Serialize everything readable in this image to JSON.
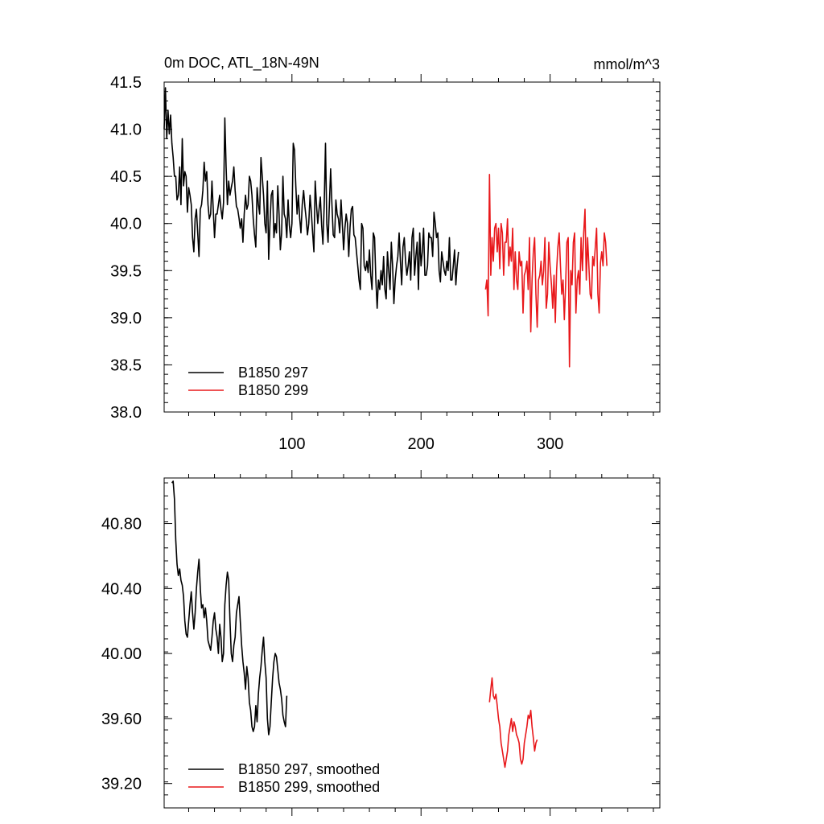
{
  "chart_data": [
    {
      "type": "line",
      "title": "0m DOC, ATL_18N-49N",
      "units": "mmol/m^3",
      "xlim": [
        1,
        385
      ],
      "ylim": [
        38.0,
        41.5
      ],
      "xticks": [
        100,
        200,
        300
      ],
      "xtick_labels": [
        "100",
        "200",
        "300"
      ],
      "yticks": [
        38.0,
        38.5,
        39.0,
        39.5,
        40.0,
        40.5,
        41.0,
        41.5
      ],
      "ytick_labels": [
        "38.0",
        "38.5",
        "39.0",
        "39.5",
        "40.0",
        "40.5",
        "41.0",
        "41.5"
      ],
      "legend_position": "bottom-left",
      "series": [
        {
          "name": "B1850 297",
          "color": "#000000",
          "x_start": 1,
          "values": [
            41.0,
            41.44,
            40.9,
            41.2,
            40.95,
            41.15,
            40.85,
            40.7,
            40.5,
            40.5,
            40.25,
            40.3,
            40.6,
            40.2,
            40.9,
            40.4,
            40.55,
            40.5,
            40.12,
            40.38,
            40.3,
            40.2,
            39.85,
            39.7,
            40.05,
            40.15,
            39.9,
            39.65,
            40.15,
            40.2,
            40.35,
            40.65,
            40.45,
            40.55,
            40.2,
            40.05,
            40.1,
            40.45,
            40.15,
            39.85,
            40.1,
            40.1,
            40.2,
            40.3,
            40.15,
            40.05,
            40.22,
            41.12,
            40.6,
            40.2,
            40.45,
            40.3,
            40.38,
            40.45,
            40.6,
            40.35,
            40.18,
            40.15,
            40.06,
            39.95,
            40.05,
            39.8,
            40.1,
            40.3,
            40.15,
            40.2,
            40.5,
            40.45,
            40.3,
            40.05,
            39.88,
            39.75,
            40.38,
            40.2,
            40.1,
            40.7,
            40.5,
            40.3,
            40.0,
            39.9,
            40.45,
            39.62,
            40.0,
            40.3,
            40.35,
            39.85,
            40.0,
            39.9,
            40.4,
            40.1,
            39.72,
            39.9,
            40.5,
            40.1,
            40.05,
            39.85,
            40.25,
            39.98,
            39.85,
            40.0,
            40.85,
            40.78,
            40.4,
            40.1,
            40.3,
            40.06,
            39.9,
            40.2,
            40.35,
            40.18,
            40.05,
            39.88,
            40.0,
            40.3,
            40.12,
            39.9,
            39.7,
            40.45,
            40.2,
            40.0,
            40.15,
            40.28,
            39.98,
            39.78,
            40.2,
            40.85,
            40.0,
            39.8,
            40.2,
            40.58,
            40.2,
            39.88,
            39.85,
            40.25,
            40.1,
            40.05,
            39.9,
            40.25,
            40.0,
            39.72,
            39.95,
            40.1,
            40.0,
            39.65,
            39.96,
            40.15,
            40.18,
            39.88,
            39.85,
            39.7,
            39.55,
            39.4,
            39.3,
            40.0,
            39.95,
            39.55,
            39.5,
            39.6,
            39.48,
            39.72,
            39.45,
            39.3,
            39.9,
            39.85,
            39.4,
            39.1,
            39.4,
            39.3,
            39.5,
            39.35,
            39.65,
            39.3,
            39.2,
            39.7,
            39.5,
            39.3,
            39.8,
            39.55,
            39.15,
            39.4,
            39.55,
            39.65,
            39.9,
            39.6,
            39.35,
            39.75,
            39.85,
            39.6,
            39.45,
            39.55,
            39.7,
            39.4,
            39.85,
            39.95,
            39.45,
            39.65,
            39.8,
            39.3,
            39.9,
            39.55,
            39.7,
            39.95,
            39.45,
            39.45,
            39.55,
            39.9,
            39.85,
            39.85,
            39.65,
            40.12,
            40.0,
            39.85,
            39.9,
            39.5,
            39.38,
            39.7,
            39.6,
            39.5,
            39.45,
            39.6,
            39.5,
            39.85,
            39.4,
            39.4,
            39.55,
            39.72,
            39.35,
            39.55,
            39.7
          ]
        },
        {
          "name": "B1850 299",
          "color": "#e8181b",
          "x_start": 250,
          "values": [
            39.3,
            39.4,
            39.02,
            40.52,
            39.45,
            39.85,
            39.6,
            39.95,
            40.0,
            39.7,
            39.95,
            39.52,
            40.0,
            39.9,
            39.45,
            39.8,
            39.8,
            40.05,
            39.55,
            39.75,
            39.6,
            39.95,
            39.3,
            39.7,
            39.4,
            39.3,
            39.7,
            39.55,
            39.6,
            39.05,
            39.45,
            39.5,
            39.6,
            39.3,
            39.85,
            38.85,
            39.4,
            39.7,
            39.85,
            39.25,
            38.9,
            39.4,
            39.45,
            39.6,
            39.35,
            39.5,
            39.85,
            39.1,
            39.25,
            39.8,
            39.55,
            39.35,
            39.1,
            39.45,
            38.95,
            39.5,
            39.75,
            39.9,
            39.55,
            39.25,
            39.4,
            38.98,
            39.35,
            39.8,
            39.85,
            38.48,
            39.5,
            39.35,
            39.8,
            39.9,
            39.05,
            39.4,
            39.5,
            39.25,
            39.85,
            39.5,
            39.9,
            40.15,
            39.4,
            39.85,
            39.55,
            39.25,
            39.2,
            39.65,
            39.55,
            39.75,
            39.95,
            39.25,
            39.05,
            39.58,
            39.7,
            39.55,
            39.9,
            39.8,
            39.55
          ]
        }
      ]
    },
    {
      "type": "line",
      "title": "",
      "xlim": [
        1,
        385
      ],
      "ylim": [
        39.05,
        41.08
      ],
      "xticks": [
        100,
        200,
        300
      ],
      "yticks": [
        39.2,
        39.6,
        40.0,
        40.4,
        40.8
      ],
      "ytick_labels": [
        "39.20",
        "39.60",
        "40.00",
        "40.40",
        "40.80"
      ],
      "legend_position": "bottom-left",
      "series": [
        {
          "name": "B1850 297, smoothed",
          "color": "#000000",
          "x_start": 7,
          "values": [
            41.05,
            41.06,
            40.95,
            40.7,
            40.55,
            40.48,
            40.52,
            40.45,
            40.42,
            40.35,
            40.2,
            40.12,
            40.1,
            40.2,
            40.3,
            40.38,
            40.25,
            40.15,
            40.25,
            40.4,
            40.5,
            40.58,
            40.4,
            40.28,
            40.3,
            40.22,
            40.28,
            40.2,
            40.08,
            40.05,
            40.02,
            40.1,
            40.2,
            40.25,
            40.15,
            40.1,
            40.0,
            40.18,
            40.1,
            39.95,
            40.0,
            40.3,
            40.42,
            40.5,
            40.45,
            40.2,
            40.0,
            39.95,
            40.05,
            40.1,
            40.25,
            40.3,
            40.35,
            40.2,
            40.05,
            39.95,
            39.88,
            39.78,
            39.92,
            39.85,
            39.7,
            39.65,
            39.55,
            39.52,
            39.55,
            39.68,
            39.58,
            39.75,
            39.85,
            39.92,
            40.02,
            40.1,
            39.95,
            39.85,
            39.6,
            39.5,
            39.55,
            39.7,
            39.85,
            39.95,
            40.0,
            39.98,
            39.9,
            39.82,
            39.78,
            39.72,
            39.62,
            39.58,
            39.55,
            39.74
          ]
        },
        {
          "name": "B1850 299, smoothed",
          "color": "#e8181b",
          "x_start": 253,
          "values": [
            39.7,
            39.78,
            39.85,
            39.74,
            39.72,
            39.75,
            39.68,
            39.6,
            39.55,
            39.45,
            39.4,
            39.35,
            39.3,
            39.35,
            39.4,
            39.5,
            39.55,
            39.6,
            39.52,
            39.58,
            39.55,
            39.5,
            39.48,
            39.45,
            39.35,
            39.32,
            39.35,
            39.45,
            39.5,
            39.55,
            39.62,
            39.6,
            39.65,
            39.55,
            39.48,
            39.4,
            39.45,
            39.47
          ]
        }
      ]
    }
  ]
}
